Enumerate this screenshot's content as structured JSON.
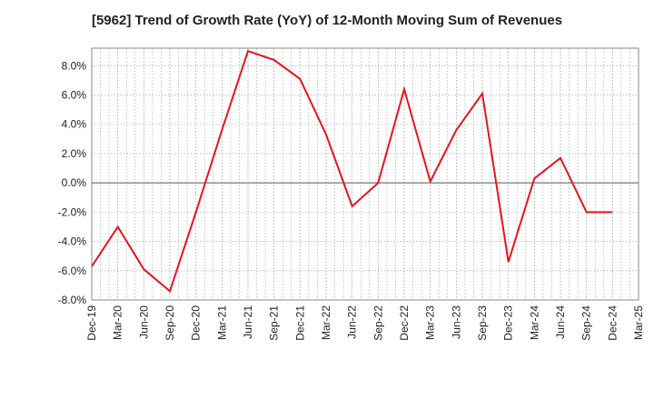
{
  "chart_data": {
    "type": "line",
    "title": "[5962]  Trend of Growth Rate (YoY) of 12-Month Moving Sum of Revenues",
    "xlabel": "",
    "ylabel": "",
    "categories": [
      "Dec-19",
      "Mar-20",
      "Jun-20",
      "Sep-20",
      "Dec-20",
      "Mar-21",
      "Jun-21",
      "Sep-21",
      "Dec-21",
      "Mar-22",
      "Jun-22",
      "Sep-22",
      "Dec-22",
      "Mar-23",
      "Jun-23",
      "Sep-23",
      "Dec-23",
      "Mar-24",
      "Jun-24",
      "Sep-24",
      "Dec-24",
      "Mar-25"
    ],
    "series": [
      {
        "color": "#e8141b",
        "values": [
          -5.7,
          -3.0,
          -5.9,
          -7.4,
          -2.0,
          3.6,
          9.0,
          8.4,
          7.1,
          3.3,
          -1.6,
          0.0,
          6.4,
          0.1,
          3.6,
          6.1,
          -5.4,
          0.3,
          1.7,
          -2.0,
          -2.0,
          null
        ]
      }
    ],
    "ylim": [
      -8.0,
      9.2
    ],
    "yticks": [
      -8.0,
      -6.0,
      -4.0,
      -2.0,
      0.0,
      2.0,
      4.0,
      6.0,
      8.0
    ],
    "ytick_labels": [
      "-8.0%",
      "-6.0%",
      "-4.0%",
      "-2.0%",
      "0.0%",
      "2.0%",
      "4.0%",
      "6.0%",
      "8.0%"
    ],
    "grid": true,
    "legend": "none"
  }
}
